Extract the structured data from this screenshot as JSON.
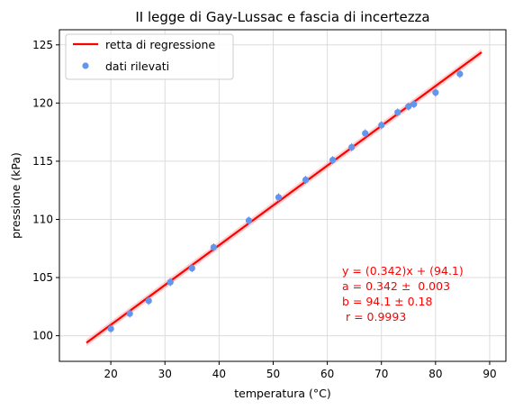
{
  "chart_data": {
    "type": "scatter",
    "title": "II legge di Gay-Lussac e fascia di incertezza",
    "xlabel": "temperatura (°C)",
    "ylabel": "pressione (kPa)",
    "xlim": [
      10.5,
      93
    ],
    "ylim": [
      97.8,
      126.3
    ],
    "xticks": [
      20,
      30,
      40,
      50,
      60,
      70,
      80,
      90
    ],
    "yticks": [
      100,
      105,
      110,
      115,
      120,
      125
    ],
    "grid": true,
    "legend_position": "top-left",
    "series": [
      {
        "name": "retta di regressione",
        "kind": "line",
        "color": "#ff0000",
        "slope": 0.342,
        "intercept": 94.1,
        "x_range": [
          15.5,
          88.5
        ]
      },
      {
        "name": "dati rilevati",
        "kind": "scatter",
        "color": "#6495ed",
        "points": [
          [
            20.0,
            100.6
          ],
          [
            23.5,
            101.9
          ],
          [
            27.0,
            103.0
          ],
          [
            31.0,
            104.6
          ],
          [
            35.0,
            105.8
          ],
          [
            39.0,
            107.6
          ],
          [
            45.5,
            109.9
          ],
          [
            51.0,
            111.9
          ],
          [
            56.0,
            113.4
          ],
          [
            61.0,
            115.1
          ],
          [
            64.5,
            116.2
          ],
          [
            67.0,
            117.4
          ],
          [
            70.0,
            118.1
          ],
          [
            73.0,
            119.2
          ],
          [
            75.0,
            119.7
          ],
          [
            76.0,
            119.9
          ],
          [
            80.0,
            120.9
          ],
          [
            84.5,
            122.5
          ]
        ]
      }
    ],
    "uncertainty_band_color": "#ffb0b0",
    "annotation": {
      "color": "#ff0000",
      "lines": [
        "y = (0.342)x + (94.1)",
        "a = 0.342 ±  0.003",
        "b = 94.1 ± 0.18",
        " r = 0.9993"
      ]
    }
  }
}
